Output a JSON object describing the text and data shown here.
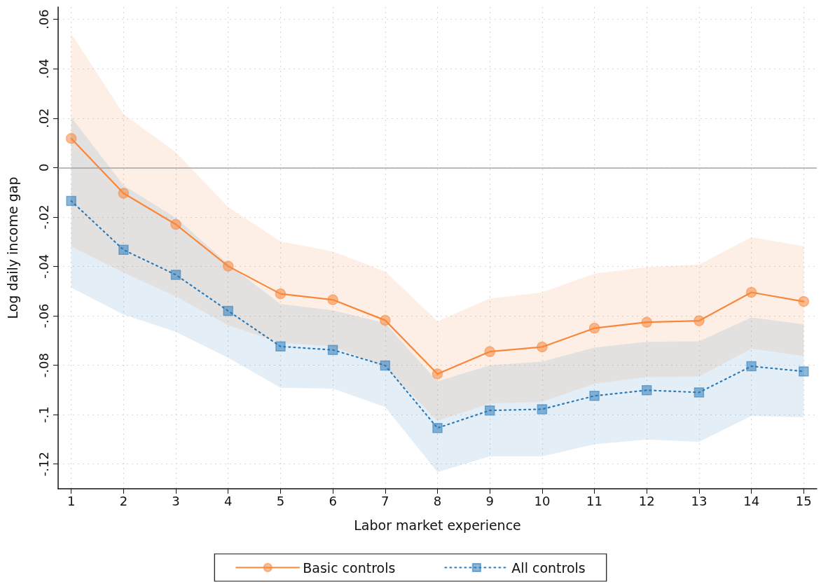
{
  "chart_data": {
    "type": "line",
    "xlabel": "Labor market experience",
    "ylabel": "Log daily income gap",
    "x": [
      1,
      2,
      3,
      4,
      5,
      6,
      7,
      8,
      9,
      10,
      11,
      12,
      13,
      14,
      15
    ],
    "xlim": [
      0.75,
      15.25
    ],
    "xticks": [
      1,
      2,
      3,
      4,
      5,
      6,
      7,
      8,
      9,
      10,
      11,
      12,
      13,
      14,
      15
    ],
    "ylim": [
      -0.13,
      0.065
    ],
    "yticks": [
      {
        "value": -0.12,
        "label": "-.12"
      },
      {
        "value": -0.1,
        "label": "-.1"
      },
      {
        "value": -0.08,
        "label": "-.08"
      },
      {
        "value": -0.06,
        "label": "-.06"
      },
      {
        "value": -0.04,
        "label": "-.04"
      },
      {
        "value": -0.02,
        "label": "-.02"
      },
      0,
      {
        "value": 0.02,
        "label": ".02"
      },
      {
        "value": 0.04,
        "label": ".04"
      },
      {
        "value": 0.06,
        "label": ".06"
      }
    ],
    "grid": true,
    "legend": "bottom",
    "ref_lines": [
      {
        "axis": "y",
        "value": 0,
        "color": "#a6a6a6",
        "line_style": "solid"
      }
    ],
    "series": [
      {
        "name": "Basic controls",
        "color": "#f8873b",
        "marker": "circle",
        "line_style": "solid",
        "values": [
          0.0118,
          -0.0104,
          -0.023,
          -0.0399,
          -0.0511,
          -0.0535,
          -0.0618,
          -0.0835,
          -0.0745,
          -0.0726,
          -0.065,
          -0.0626,
          -0.062,
          -0.0505,
          -0.0542
        ],
        "upper": [
          0.0543,
          0.0217,
          0.0062,
          -0.016,
          -0.0299,
          -0.0339,
          -0.042,
          -0.0622,
          -0.053,
          -0.0505,
          -0.0429,
          -0.0403,
          -0.0392,
          -0.0282,
          -0.0318
        ],
        "lower": [
          -0.032,
          -0.0425,
          -0.0522,
          -0.0638,
          -0.0709,
          -0.0724,
          -0.0808,
          -0.1025,
          -0.0955,
          -0.0948,
          -0.0875,
          -0.0848,
          -0.0846,
          -0.0733,
          -0.0763
        ]
      },
      {
        "name": "All controls",
        "color": "#2b7bba",
        "marker": "square",
        "line_style": "dotted",
        "values": [
          -0.0135,
          -0.0333,
          -0.0434,
          -0.058,
          -0.0724,
          -0.0738,
          -0.0801,
          -0.1054,
          -0.0983,
          -0.0978,
          -0.0924,
          -0.0901,
          -0.091,
          -0.0804,
          -0.0825
        ],
        "upper": [
          0.0204,
          -0.0071,
          -0.0203,
          -0.039,
          -0.0552,
          -0.0577,
          -0.0629,
          -0.0865,
          -0.08,
          -0.0785,
          -0.0728,
          -0.0705,
          -0.0703,
          -0.0606,
          -0.0634
        ],
        "lower": [
          -0.0486,
          -0.0595,
          -0.0665,
          -0.077,
          -0.0891,
          -0.0895,
          -0.0969,
          -0.1233,
          -0.1169,
          -0.1169,
          -0.112,
          -0.1101,
          -0.111,
          -0.1005,
          -0.1011
        ]
      }
    ]
  }
}
